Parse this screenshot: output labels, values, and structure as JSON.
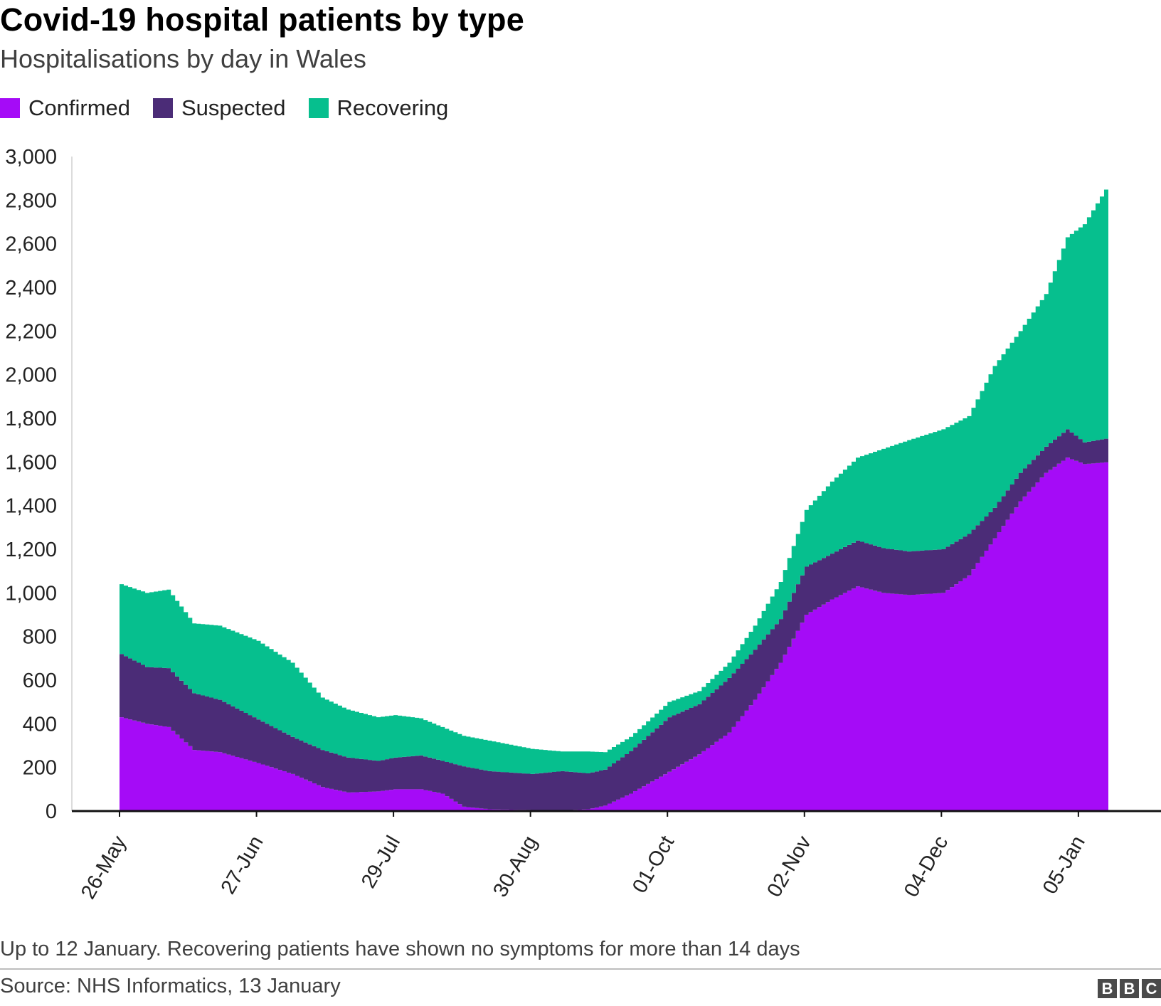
{
  "header": {
    "title": "Covid-19 hospital patients by type",
    "subtitle": "Hospitalisations by day in Wales"
  },
  "legend": [
    {
      "label": "Confirmed",
      "color": "#a50bf7"
    },
    {
      "label": "Suspected",
      "color": "#4b2c77"
    },
    {
      "label": "Recovering",
      "color": "#06bf8e"
    }
  ],
  "footer": {
    "note": "Up to 12 January. Recovering patients have shown no symptoms for more than 14 days",
    "source": "Source: NHS Informatics, 13 January",
    "logo_letters": [
      "B",
      "B",
      "C"
    ]
  },
  "chart_data": {
    "type": "area",
    "stacked": true,
    "x_start": "2020-05-26",
    "x_end": "2021-01-12",
    "ylim": [
      0,
      3000
    ],
    "y_ticks": [
      0,
      200,
      400,
      600,
      800,
      1000,
      1200,
      1400,
      1600,
      1800,
      2000,
      2200,
      2400,
      2600,
      2800,
      3000
    ],
    "y_tick_labels": [
      "0",
      "200",
      "400",
      "600",
      "800",
      "1,000",
      "1,200",
      "1,400",
      "1,600",
      "1,800",
      "2,000",
      "2,200",
      "2,400",
      "2,600",
      "2,800",
      "3,000"
    ],
    "x_ticks": [
      "2020-05-26",
      "2020-06-27",
      "2020-07-29",
      "2020-08-30",
      "2020-10-01",
      "2020-11-02",
      "2020-12-04",
      "2021-01-05"
    ],
    "x_tick_labels": [
      "26-May",
      "27-Jun",
      "29-Jul",
      "30-Aug",
      "01-Oct",
      "02-Nov",
      "04-Dec",
      "05-Jan"
    ],
    "grid": false,
    "legend_position": "top-left",
    "series": [
      {
        "name": "Confirmed",
        "color": "#a50bf7",
        "points": [
          [
            "2020-05-26",
            430
          ],
          [
            "2020-06-01",
            400
          ],
          [
            "2020-06-06",
            385
          ],
          [
            "2020-06-12",
            280
          ],
          [
            "2020-06-18",
            270
          ],
          [
            "2020-06-27",
            220
          ],
          [
            "2020-07-05",
            170
          ],
          [
            "2020-07-12",
            110
          ],
          [
            "2020-07-18",
            85
          ],
          [
            "2020-07-25",
            90
          ],
          [
            "2020-07-29",
            100
          ],
          [
            "2020-08-04",
            100
          ],
          [
            "2020-08-09",
            80
          ],
          [
            "2020-08-14",
            20
          ],
          [
            "2020-08-20",
            8
          ],
          [
            "2020-08-30",
            5
          ],
          [
            "2020-09-06",
            3
          ],
          [
            "2020-09-12",
            8
          ],
          [
            "2020-09-16",
            25
          ],
          [
            "2020-09-22",
            80
          ],
          [
            "2020-10-01",
            180
          ],
          [
            "2020-10-08",
            260
          ],
          [
            "2020-10-15",
            360
          ],
          [
            "2020-10-21",
            510
          ],
          [
            "2020-10-27",
            680
          ],
          [
            "2020-11-02",
            900
          ],
          [
            "2020-11-08",
            970
          ],
          [
            "2020-11-14",
            1030
          ],
          [
            "2020-11-20",
            1000
          ],
          [
            "2020-11-26",
            990
          ],
          [
            "2020-12-04",
            1000
          ],
          [
            "2020-12-10",
            1080
          ],
          [
            "2020-12-16",
            1250
          ],
          [
            "2020-12-22",
            1420
          ],
          [
            "2020-12-28",
            1550
          ],
          [
            "2021-01-02",
            1620
          ],
          [
            "2021-01-06",
            1590
          ],
          [
            "2021-01-12",
            1600
          ]
        ]
      },
      {
        "name": "Suspected",
        "color": "#4b2c77",
        "points": [
          [
            "2020-05-26",
            290
          ],
          [
            "2020-06-01",
            260
          ],
          [
            "2020-06-06",
            270
          ],
          [
            "2020-06-12",
            260
          ],
          [
            "2020-06-18",
            240
          ],
          [
            "2020-06-27",
            200
          ],
          [
            "2020-07-05",
            170
          ],
          [
            "2020-07-12",
            170
          ],
          [
            "2020-07-18",
            160
          ],
          [
            "2020-07-25",
            140
          ],
          [
            "2020-07-29",
            145
          ],
          [
            "2020-08-04",
            155
          ],
          [
            "2020-08-09",
            150
          ],
          [
            "2020-08-14",
            185
          ],
          [
            "2020-08-20",
            175
          ],
          [
            "2020-08-30",
            165
          ],
          [
            "2020-09-06",
            180
          ],
          [
            "2020-09-12",
            165
          ],
          [
            "2020-09-16",
            165
          ],
          [
            "2020-09-22",
            195
          ],
          [
            "2020-10-01",
            250
          ],
          [
            "2020-10-08",
            230
          ],
          [
            "2020-10-15",
            250
          ],
          [
            "2020-10-21",
            230
          ],
          [
            "2020-10-27",
            200
          ],
          [
            "2020-11-02",
            220
          ],
          [
            "2020-11-08",
            210
          ],
          [
            "2020-11-14",
            210
          ],
          [
            "2020-11-20",
            205
          ],
          [
            "2020-11-26",
            200
          ],
          [
            "2020-12-04",
            200
          ],
          [
            "2020-12-10",
            190
          ],
          [
            "2020-12-16",
            140
          ],
          [
            "2020-12-22",
            130
          ],
          [
            "2020-12-28",
            120
          ],
          [
            "2021-01-02",
            130
          ],
          [
            "2021-01-06",
            100
          ],
          [
            "2021-01-12",
            110
          ]
        ]
      },
      {
        "name": "Recovering",
        "color": "#06bf8e",
        "points": [
          [
            "2020-05-26",
            320
          ],
          [
            "2020-06-01",
            340
          ],
          [
            "2020-06-06",
            360
          ],
          [
            "2020-06-12",
            320
          ],
          [
            "2020-06-18",
            340
          ],
          [
            "2020-06-27",
            360
          ],
          [
            "2020-07-05",
            340
          ],
          [
            "2020-07-12",
            240
          ],
          [
            "2020-07-18",
            220
          ],
          [
            "2020-07-25",
            200
          ],
          [
            "2020-07-29",
            195
          ],
          [
            "2020-08-04",
            170
          ],
          [
            "2020-08-09",
            155
          ],
          [
            "2020-08-14",
            140
          ],
          [
            "2020-08-20",
            140
          ],
          [
            "2020-08-30",
            115
          ],
          [
            "2020-09-06",
            90
          ],
          [
            "2020-09-12",
            100
          ],
          [
            "2020-09-16",
            80
          ],
          [
            "2020-09-22",
            65
          ],
          [
            "2020-10-01",
            70
          ],
          [
            "2020-10-08",
            60
          ],
          [
            "2020-10-15",
            70
          ],
          [
            "2020-10-21",
            110
          ],
          [
            "2020-10-27",
            170
          ],
          [
            "2020-11-02",
            260
          ],
          [
            "2020-11-08",
            330
          ],
          [
            "2020-11-14",
            380
          ],
          [
            "2020-11-20",
            455
          ],
          [
            "2020-11-26",
            510
          ],
          [
            "2020-12-04",
            550
          ],
          [
            "2020-12-10",
            540
          ],
          [
            "2020-12-16",
            650
          ],
          [
            "2020-12-22",
            650
          ],
          [
            "2020-12-28",
            700
          ],
          [
            "2021-01-02",
            880
          ],
          [
            "2021-01-06",
            1000
          ],
          [
            "2021-01-12",
            1170
          ]
        ]
      }
    ]
  }
}
